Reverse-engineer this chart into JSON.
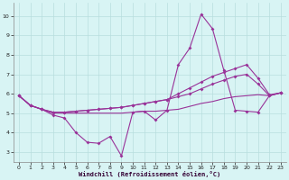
{
  "xlabel": "Windchill (Refroidissement éolien,°C)",
  "bg_color": "#d8f4f4",
  "line_color": "#993399",
  "grid_color": "#b8dede",
  "xlim": [
    -0.5,
    23.5
  ],
  "ylim": [
    2.5,
    10.7
  ],
  "yticks": [
    3,
    4,
    5,
    6,
    7,
    8,
    9,
    10
  ],
  "xticks": [
    0,
    1,
    2,
    3,
    4,
    5,
    6,
    7,
    8,
    9,
    10,
    11,
    12,
    13,
    14,
    15,
    16,
    17,
    18,
    19,
    20,
    21,
    22,
    23
  ],
  "series": [
    {
      "x": [
        0,
        1,
        2,
        3,
        4,
        5,
        6,
        7,
        8,
        9,
        10,
        11,
        12,
        13,
        14,
        15,
        16,
        17,
        18,
        19,
        20,
        21,
        22,
        23
      ],
      "y": [
        5.9,
        5.4,
        5.2,
        4.9,
        4.75,
        4.0,
        3.5,
        3.45,
        3.8,
        2.8,
        5.05,
        5.1,
        4.65,
        5.15,
        7.5,
        8.35,
        10.1,
        9.35,
        7.2,
        5.15,
        5.1,
        5.05,
        5.9,
        6.05
      ],
      "marker": true
    },
    {
      "x": [
        0,
        1,
        2,
        3,
        4,
        5,
        6,
        7,
        8,
        9,
        10,
        11,
        12,
        13,
        14,
        15,
        16,
        17,
        18,
        19,
        20,
        21,
        22,
        23
      ],
      "y": [
        5.9,
        5.4,
        5.2,
        5.05,
        5.05,
        5.1,
        5.15,
        5.2,
        5.25,
        5.3,
        5.4,
        5.5,
        5.6,
        5.7,
        6.0,
        6.3,
        6.6,
        6.9,
        7.1,
        7.3,
        7.5,
        6.8,
        5.95,
        6.05
      ],
      "marker": true
    },
    {
      "x": [
        0,
        1,
        2,
        3,
        4,
        5,
        6,
        7,
        8,
        9,
        10,
        11,
        12,
        13,
        14,
        15,
        16,
        17,
        18,
        19,
        20,
        21,
        22,
        23
      ],
      "y": [
        5.9,
        5.4,
        5.2,
        5.05,
        5.05,
        5.1,
        5.15,
        5.2,
        5.25,
        5.3,
        5.4,
        5.5,
        5.6,
        5.7,
        5.85,
        6.0,
        6.25,
        6.5,
        6.7,
        6.9,
        7.0,
        6.5,
        5.9,
        6.05
      ],
      "marker": true
    },
    {
      "x": [
        0,
        1,
        2,
        3,
        4,
        5,
        6,
        7,
        8,
        9,
        10,
        11,
        12,
        13,
        14,
        15,
        16,
        17,
        18,
        19,
        20,
        21,
        22,
        23
      ],
      "y": [
        5.9,
        5.4,
        5.2,
        5.0,
        5.0,
        5.0,
        5.0,
        5.0,
        5.0,
        5.0,
        5.05,
        5.1,
        5.1,
        5.15,
        5.2,
        5.35,
        5.5,
        5.6,
        5.75,
        5.85,
        5.9,
        5.95,
        5.9,
        6.05
      ],
      "marker": false
    }
  ]
}
